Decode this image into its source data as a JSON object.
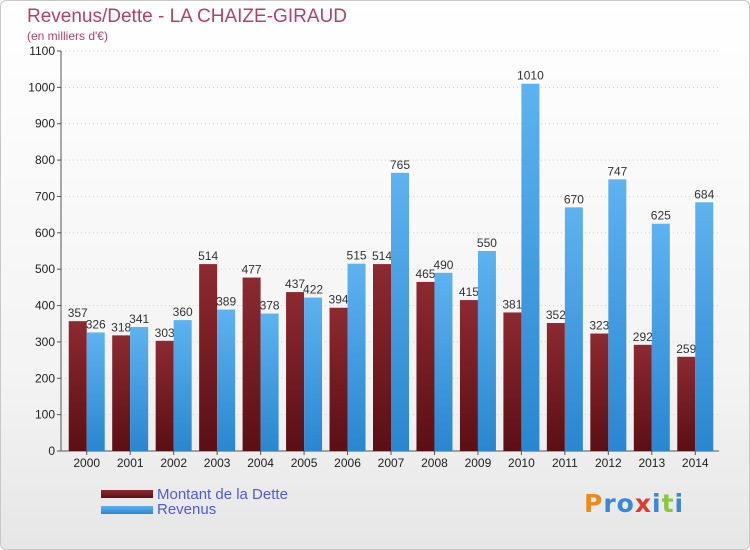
{
  "chart_data": {
    "type": "bar",
    "title": "Revenus/Dette - LA CHAIZE-GIRAUD",
    "subtitle": "(en milliers d'€)",
    "categories": [
      "2000",
      "2001",
      "2002",
      "2003",
      "2004",
      "2005",
      "2006",
      "2007",
      "2008",
      "2009",
      "2010",
      "2011",
      "2012",
      "2013",
      "2014"
    ],
    "series": [
      {
        "name": "Montant de la Dette",
        "color": "#7a1e24",
        "values": [
          357,
          318,
          303,
          514,
          477,
          437,
          394,
          514,
          465,
          415,
          381,
          352,
          323,
          292,
          259
        ]
      },
      {
        "name": "Revenus",
        "color": "#3d9be3",
        "values": [
          326,
          341,
          360,
          389,
          378,
          422,
          515,
          765,
          490,
          550,
          1010,
          670,
          747,
          625,
          684
        ]
      }
    ],
    "ylim": [
      0,
      1100
    ],
    "yticks": [
      0,
      100,
      200,
      300,
      400,
      500,
      600,
      700,
      800,
      900,
      1000,
      1100
    ],
    "grid": true,
    "legend_position": "bottom-left"
  },
  "logo": {
    "letters": [
      "P",
      "r",
      "o",
      "x",
      "i",
      "t",
      "i"
    ],
    "colors": [
      "#e98b1f",
      "#3a87d6",
      "#3a87d6",
      "#e03a2f",
      "#3a87d6",
      "#8cc63f",
      "#3a87d6"
    ]
  }
}
